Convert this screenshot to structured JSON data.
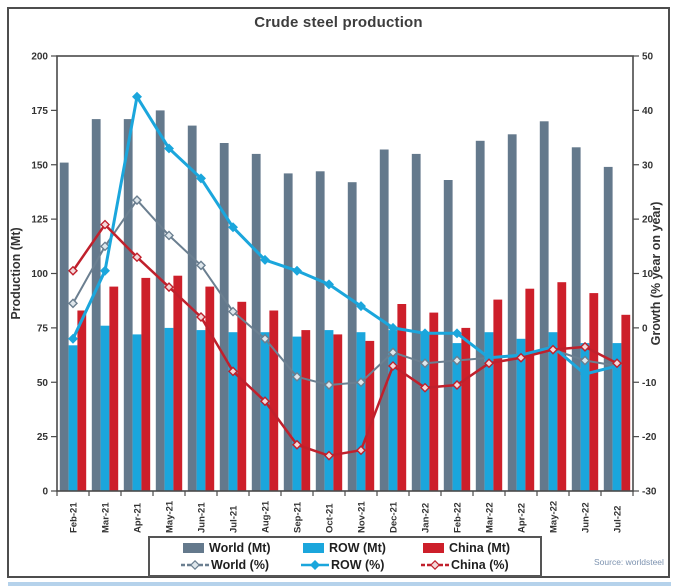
{
  "title": "Crude steel production",
  "source": "Source: worldsteel",
  "colors": {
    "world_bar": "#64798C",
    "row_bar": "#1BA6DC",
    "china_bar": "#CD1F2A",
    "world_line": "#6B7F90",
    "row_line": "#1BA6DC",
    "china_line": "#C0202C",
    "axis_frame": "#4a4a4a",
    "tick_text": "#333333",
    "title_text": "#3d3d3d",
    "source_text": "#7d93b0",
    "bottom_strip": "#b5d2eb"
  },
  "chart_data": {
    "type": "bar",
    "subtype": "bar+line combo, dual axis",
    "title": "Crude steel production",
    "grid": false,
    "legend_position": "bottom",
    "categories": [
      "Feb-21",
      "Mar-21",
      "Apr-21",
      "May-21",
      "Jun-21",
      "Jul-21",
      "Aug-21",
      "Sep-21",
      "Oct-21",
      "Nov-21",
      "Dec-21",
      "Jan-22",
      "Feb-22",
      "Mar-22",
      "Apr-22",
      "May-22",
      "Jun-22",
      "Jul-22"
    ],
    "left_axis": {
      "label": "Production (Mt)",
      "min": 0,
      "max": 200,
      "ticks": [
        0,
        25,
        50,
        75,
        100,
        125,
        150,
        175,
        200
      ]
    },
    "right_axis": {
      "label": "Growth (% year on year)",
      "min": -30,
      "max": 50,
      "ticks": [
        -30,
        -20,
        -10,
        0,
        10,
        20,
        30,
        40,
        50
      ]
    },
    "bar_series": [
      {
        "name": "World (Mt)",
        "axis": "left",
        "color": "#64798C",
        "values": [
          151,
          171,
          171,
          175,
          168,
          160,
          155,
          146,
          147,
          142,
          157,
          155,
          143,
          161,
          164,
          170,
          158,
          149
        ]
      },
      {
        "name": "ROW (Mt)",
        "axis": "left",
        "color": "#1BA6DC",
        "values": [
          67,
          76,
          72,
          75,
          74,
          73,
          73,
          71,
          74,
          73,
          74,
          73,
          68,
          73,
          70,
          73,
          68,
          68
        ]
      },
      {
        "name": "China (Mt)",
        "axis": "left",
        "color": "#CD1F2A",
        "values": [
          83,
          94,
          98,
          99,
          94,
          87,
          83,
          74,
          72,
          69,
          86,
          82,
          75,
          88,
          93,
          96,
          91,
          81
        ]
      }
    ],
    "line_series": [
      {
        "name": "World (%)",
        "axis": "right",
        "color": "#6B7F90",
        "marker_fill": "#dfe7ec",
        "width": 2,
        "dash": "",
        "values": [
          4.5,
          15,
          23.5,
          17,
          11.5,
          3,
          -2,
          -9,
          -10.5,
          -10,
          -4.5,
          -6.5,
          -6,
          -5.5,
          -5,
          -4,
          -6,
          -7
        ]
      },
      {
        "name": "ROW (%)",
        "axis": "right",
        "color": "#1BA6DC",
        "marker_fill": "#1BA6DC",
        "width": 3,
        "dash": "",
        "values": [
          -2,
          10.5,
          42.5,
          33,
          27.5,
          18.5,
          12.5,
          10.5,
          8,
          4,
          0,
          -1,
          -1,
          -5.5,
          -5,
          -3.5,
          -8.5,
          -7
        ]
      },
      {
        "name": "China (%)",
        "axis": "right",
        "color": "#C0202C",
        "marker_fill": "#f3d9da",
        "width": 2.5,
        "dash": "",
        "values": [
          10.5,
          19,
          13,
          7.5,
          2,
          -8,
          -13.5,
          -21.5,
          -23.5,
          -22.5,
          -7,
          -11,
          -10.5,
          -6.5,
          -5.5,
          -4,
          -3.5,
          -6.5
        ]
      }
    ]
  },
  "legend": {
    "items": [
      {
        "key": "world-mt",
        "label": "World (Mt)",
        "type": "bar",
        "series": "World (Mt)"
      },
      {
        "key": "row-mt",
        "label": "ROW (Mt)",
        "type": "bar",
        "series": "ROW (Mt)"
      },
      {
        "key": "china-mt",
        "label": "China (Mt)",
        "type": "bar",
        "series": "China (Mt)"
      },
      {
        "key": "world-pct",
        "label": "World (%)",
        "type": "line",
        "series": "World (%)",
        "legend_dash": "4,2"
      },
      {
        "key": "row-pct",
        "label": "ROW (%)",
        "type": "line",
        "series": "ROW (%)",
        "legend_dash": ""
      },
      {
        "key": "china-pct",
        "label": "China (%)",
        "type": "line",
        "series": "China (%)",
        "legend_dash": "4,2"
      }
    ]
  }
}
